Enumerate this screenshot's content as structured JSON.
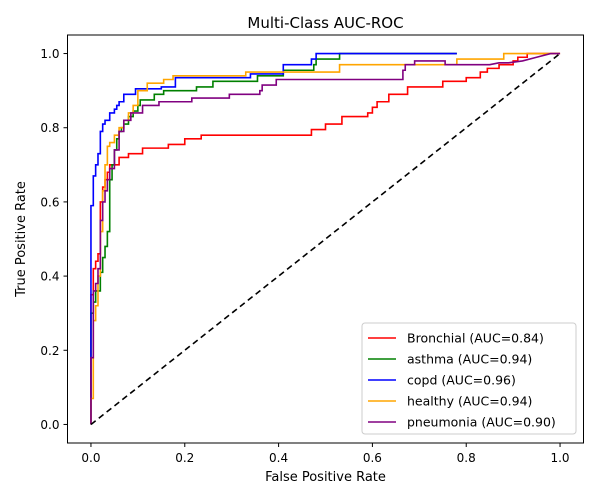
{
  "chart_data": {
    "type": "line",
    "title": "Multi-Class AUC-ROC",
    "xlabel": "False Positive Rate",
    "ylabel": "True Positive Rate",
    "xlim": [
      -0.05,
      1.05
    ],
    "ylim": [
      -0.05,
      1.05
    ],
    "xticks": [
      "0.0",
      "0.2",
      "0.4",
      "0.6",
      "0.8",
      "1.0"
    ],
    "yticks": [
      "0.0",
      "0.2",
      "0.4",
      "0.6",
      "0.8",
      "1.0"
    ],
    "grid": false,
    "legend_position": "lower-right",
    "series": [
      {
        "name": "Bronchial (AUC=0.84)",
        "color": "#ff0000",
        "dash": false,
        "points": [
          [
            0,
            0
          ],
          [
            0,
            0.35
          ],
          [
            0.005,
            0.35
          ],
          [
            0.005,
            0.42
          ],
          [
            0.01,
            0.42
          ],
          [
            0.01,
            0.44
          ],
          [
            0.015,
            0.44
          ],
          [
            0.015,
            0.46
          ],
          [
            0.02,
            0.46
          ],
          [
            0.02,
            0.6
          ],
          [
            0.025,
            0.6
          ],
          [
            0.025,
            0.64
          ],
          [
            0.03,
            0.64
          ],
          [
            0.03,
            0.66
          ],
          [
            0.035,
            0.66
          ],
          [
            0.035,
            0.68
          ],
          [
            0.04,
            0.68
          ],
          [
            0.04,
            0.7
          ],
          [
            0.06,
            0.7
          ],
          [
            0.06,
            0.72
          ],
          [
            0.08,
            0.72
          ],
          [
            0.08,
            0.73
          ],
          [
            0.11,
            0.73
          ],
          [
            0.11,
            0.745
          ],
          [
            0.165,
            0.745
          ],
          [
            0.165,
            0.755
          ],
          [
            0.2,
            0.755
          ],
          [
            0.2,
            0.77
          ],
          [
            0.235,
            0.77
          ],
          [
            0.235,
            0.78
          ],
          [
            0.47,
            0.78
          ],
          [
            0.47,
            0.795
          ],
          [
            0.5,
            0.795
          ],
          [
            0.5,
            0.81
          ],
          [
            0.535,
            0.81
          ],
          [
            0.535,
            0.83
          ],
          [
            0.59,
            0.83
          ],
          [
            0.59,
            0.84
          ],
          [
            0.6,
            0.84
          ],
          [
            0.6,
            0.855
          ],
          [
            0.61,
            0.855
          ],
          [
            0.61,
            0.87
          ],
          [
            0.635,
            0.87
          ],
          [
            0.635,
            0.89
          ],
          [
            0.675,
            0.89
          ],
          [
            0.675,
            0.91
          ],
          [
            0.75,
            0.91
          ],
          [
            0.75,
            0.925
          ],
          [
            0.8,
            0.925
          ],
          [
            0.8,
            0.935
          ],
          [
            0.83,
            0.935
          ],
          [
            0.83,
            0.95
          ],
          [
            0.845,
            0.95
          ],
          [
            0.845,
            0.96
          ],
          [
            0.87,
            0.96
          ],
          [
            0.87,
            0.97
          ],
          [
            0.9,
            0.97
          ],
          [
            0.9,
            0.98
          ],
          [
            0.91,
            0.98
          ],
          [
            0.91,
            0.99
          ],
          [
            0.93,
            0.99
          ],
          [
            0.93,
            1.0
          ],
          [
            1.0,
            1.0
          ]
        ]
      },
      {
        "name": "asthma (AUC=0.94)",
        "color": "#008000",
        "dash": false,
        "points": [
          [
            0,
            0
          ],
          [
            0,
            0.3
          ],
          [
            0.005,
            0.3
          ],
          [
            0.005,
            0.33
          ],
          [
            0.01,
            0.33
          ],
          [
            0.01,
            0.36
          ],
          [
            0.02,
            0.36
          ],
          [
            0.02,
            0.41
          ],
          [
            0.025,
            0.41
          ],
          [
            0.025,
            0.45
          ],
          [
            0.03,
            0.45
          ],
          [
            0.03,
            0.48
          ],
          [
            0.035,
            0.48
          ],
          [
            0.035,
            0.52
          ],
          [
            0.04,
            0.52
          ],
          [
            0.04,
            0.66
          ],
          [
            0.045,
            0.66
          ],
          [
            0.045,
            0.7
          ],
          [
            0.05,
            0.7
          ],
          [
            0.05,
            0.74
          ],
          [
            0.055,
            0.74
          ],
          [
            0.055,
            0.77
          ],
          [
            0.06,
            0.77
          ],
          [
            0.06,
            0.79
          ],
          [
            0.065,
            0.79
          ],
          [
            0.065,
            0.8
          ],
          [
            0.07,
            0.8
          ],
          [
            0.07,
            0.81
          ],
          [
            0.08,
            0.81
          ],
          [
            0.08,
            0.83
          ],
          [
            0.09,
            0.83
          ],
          [
            0.09,
            0.845
          ],
          [
            0.1,
            0.845
          ],
          [
            0.1,
            0.86
          ],
          [
            0.105,
            0.86
          ],
          [
            0.105,
            0.875
          ],
          [
            0.135,
            0.875
          ],
          [
            0.135,
            0.89
          ],
          [
            0.155,
            0.89
          ],
          [
            0.155,
            0.9
          ],
          [
            0.225,
            0.9
          ],
          [
            0.225,
            0.91
          ],
          [
            0.26,
            0.91
          ],
          [
            0.26,
            0.925
          ],
          [
            0.355,
            0.925
          ],
          [
            0.355,
            0.94
          ],
          [
            0.41,
            0.94
          ],
          [
            0.41,
            0.955
          ],
          [
            0.475,
            0.955
          ],
          [
            0.475,
            0.97
          ],
          [
            0.48,
            0.97
          ],
          [
            0.48,
            0.985
          ],
          [
            0.53,
            0.985
          ],
          [
            0.53,
            1.0
          ],
          [
            0.78,
            1.0
          ]
        ]
      },
      {
        "name": "copd (AUC=0.96)",
        "color": "#0000ff",
        "dash": false,
        "points": [
          [
            0,
            0
          ],
          [
            0,
            0.59
          ],
          [
            0.005,
            0.59
          ],
          [
            0.005,
            0.67
          ],
          [
            0.01,
            0.67
          ],
          [
            0.01,
            0.7
          ],
          [
            0.015,
            0.7
          ],
          [
            0.015,
            0.73
          ],
          [
            0.02,
            0.73
          ],
          [
            0.02,
            0.79
          ],
          [
            0.025,
            0.79
          ],
          [
            0.025,
            0.81
          ],
          [
            0.03,
            0.81
          ],
          [
            0.03,
            0.82
          ],
          [
            0.04,
            0.82
          ],
          [
            0.04,
            0.84
          ],
          [
            0.05,
            0.84
          ],
          [
            0.05,
            0.85
          ],
          [
            0.055,
            0.85
          ],
          [
            0.055,
            0.86
          ],
          [
            0.06,
            0.86
          ],
          [
            0.06,
            0.87
          ],
          [
            0.07,
            0.87
          ],
          [
            0.07,
            0.89
          ],
          [
            0.095,
            0.89
          ],
          [
            0.095,
            0.905
          ],
          [
            0.15,
            0.905
          ],
          [
            0.15,
            0.91
          ],
          [
            0.18,
            0.91
          ],
          [
            0.18,
            0.935
          ],
          [
            0.34,
            0.935
          ],
          [
            0.34,
            0.945
          ],
          [
            0.41,
            0.945
          ],
          [
            0.41,
            0.97
          ],
          [
            0.47,
            0.97
          ],
          [
            0.47,
            0.985
          ],
          [
            0.48,
            0.985
          ],
          [
            0.48,
            1.0
          ],
          [
            0.78,
            1.0
          ]
        ]
      },
      {
        "name": "healthy (AUC=0.94)",
        "color": "#ffa500",
        "dash": false,
        "points": [
          [
            0,
            0
          ],
          [
            0,
            0.07
          ],
          [
            0.005,
            0.07
          ],
          [
            0.005,
            0.28
          ],
          [
            0.01,
            0.28
          ],
          [
            0.01,
            0.32
          ],
          [
            0.015,
            0.32
          ],
          [
            0.015,
            0.4
          ],
          [
            0.02,
            0.4
          ],
          [
            0.02,
            0.52
          ],
          [
            0.025,
            0.52
          ],
          [
            0.025,
            0.63
          ],
          [
            0.03,
            0.63
          ],
          [
            0.03,
            0.7
          ],
          [
            0.035,
            0.7
          ],
          [
            0.035,
            0.75
          ],
          [
            0.04,
            0.75
          ],
          [
            0.04,
            0.76
          ],
          [
            0.05,
            0.76
          ],
          [
            0.05,
            0.78
          ],
          [
            0.06,
            0.78
          ],
          [
            0.06,
            0.8
          ],
          [
            0.07,
            0.8
          ],
          [
            0.07,
            0.82
          ],
          [
            0.08,
            0.82
          ],
          [
            0.08,
            0.84
          ],
          [
            0.09,
            0.84
          ],
          [
            0.09,
            0.86
          ],
          [
            0.1,
            0.86
          ],
          [
            0.1,
            0.9
          ],
          [
            0.12,
            0.9
          ],
          [
            0.12,
            0.92
          ],
          [
            0.155,
            0.92
          ],
          [
            0.155,
            0.93
          ],
          [
            0.175,
            0.93
          ],
          [
            0.175,
            0.94
          ],
          [
            0.33,
            0.94
          ],
          [
            0.33,
            0.95
          ],
          [
            0.53,
            0.95
          ],
          [
            0.53,
            0.97
          ],
          [
            0.78,
            0.97
          ],
          [
            0.78,
            0.985
          ],
          [
            0.88,
            0.985
          ],
          [
            0.88,
            1.0
          ],
          [
            1.0,
            1.0
          ]
        ]
      },
      {
        "name": "pneumonia (AUC=0.90)",
        "color": "#800080",
        "dash": false,
        "points": [
          [
            0,
            0
          ],
          [
            0,
            0.18
          ],
          [
            0.005,
            0.18
          ],
          [
            0.005,
            0.36
          ],
          [
            0.01,
            0.36
          ],
          [
            0.01,
            0.38
          ],
          [
            0.015,
            0.38
          ],
          [
            0.015,
            0.42
          ],
          [
            0.02,
            0.42
          ],
          [
            0.02,
            0.55
          ],
          [
            0.025,
            0.55
          ],
          [
            0.025,
            0.6
          ],
          [
            0.03,
            0.6
          ],
          [
            0.03,
            0.63
          ],
          [
            0.035,
            0.63
          ],
          [
            0.035,
            0.66
          ],
          [
            0.04,
            0.66
          ],
          [
            0.04,
            0.69
          ],
          [
            0.05,
            0.69
          ],
          [
            0.05,
            0.74
          ],
          [
            0.06,
            0.74
          ],
          [
            0.06,
            0.79
          ],
          [
            0.07,
            0.79
          ],
          [
            0.07,
            0.82
          ],
          [
            0.085,
            0.82
          ],
          [
            0.085,
            0.84
          ],
          [
            0.11,
            0.84
          ],
          [
            0.11,
            0.86
          ],
          [
            0.145,
            0.86
          ],
          [
            0.145,
            0.87
          ],
          [
            0.215,
            0.87
          ],
          [
            0.215,
            0.88
          ],
          [
            0.295,
            0.88
          ],
          [
            0.295,
            0.89
          ],
          [
            0.36,
            0.89
          ],
          [
            0.36,
            0.9
          ],
          [
            0.365,
            0.9
          ],
          [
            0.365,
            0.915
          ],
          [
            0.395,
            0.915
          ],
          [
            0.395,
            0.93
          ],
          [
            0.665,
            0.93
          ],
          [
            0.665,
            0.955
          ],
          [
            0.67,
            0.955
          ],
          [
            0.67,
            0.97
          ],
          [
            0.69,
            0.97
          ],
          [
            0.69,
            0.98
          ],
          [
            0.755,
            0.98
          ],
          [
            0.755,
            0.97
          ],
          [
            0.85,
            0.97
          ],
          [
            0.87,
            0.975
          ],
          [
            0.89,
            0.975
          ],
          [
            0.92,
            0.98
          ],
          [
            0.95,
            0.99
          ],
          [
            0.98,
            1.0
          ],
          [
            1.0,
            1.0
          ]
        ]
      },
      {
        "name": "",
        "color": "#000000",
        "dash": true,
        "points": [
          [
            0,
            0
          ],
          [
            1,
            1
          ]
        ]
      }
    ]
  }
}
